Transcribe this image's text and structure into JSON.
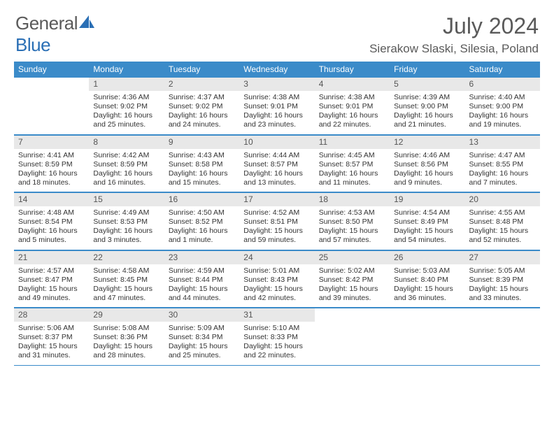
{
  "brand": {
    "word1": "General",
    "word2": "Blue"
  },
  "title": "July 2024",
  "location": "Sierakow Slaski, Silesia, Poland",
  "colors": {
    "header_bg": "#3b8bc9",
    "header_text": "#ffffff",
    "daynum_bg": "#e8e8e8",
    "border": "#3b8bc9",
    "text": "#333333",
    "title_text": "#5a5a5a"
  },
  "day_names": [
    "Sunday",
    "Monday",
    "Tuesday",
    "Wednesday",
    "Thursday",
    "Friday",
    "Saturday"
  ],
  "weeks": [
    [
      {
        "empty": true
      },
      {
        "n": "1",
        "sr": "4:36 AM",
        "ss": "9:02 PM",
        "dl": "16 hours and 25 minutes."
      },
      {
        "n": "2",
        "sr": "4:37 AM",
        "ss": "9:02 PM",
        "dl": "16 hours and 24 minutes."
      },
      {
        "n": "3",
        "sr": "4:38 AM",
        "ss": "9:01 PM",
        "dl": "16 hours and 23 minutes."
      },
      {
        "n": "4",
        "sr": "4:38 AM",
        "ss": "9:01 PM",
        "dl": "16 hours and 22 minutes."
      },
      {
        "n": "5",
        "sr": "4:39 AM",
        "ss": "9:00 PM",
        "dl": "16 hours and 21 minutes."
      },
      {
        "n": "6",
        "sr": "4:40 AM",
        "ss": "9:00 PM",
        "dl": "16 hours and 19 minutes."
      }
    ],
    [
      {
        "n": "7",
        "sr": "4:41 AM",
        "ss": "8:59 PM",
        "dl": "16 hours and 18 minutes."
      },
      {
        "n": "8",
        "sr": "4:42 AM",
        "ss": "8:59 PM",
        "dl": "16 hours and 16 minutes."
      },
      {
        "n": "9",
        "sr": "4:43 AM",
        "ss": "8:58 PM",
        "dl": "16 hours and 15 minutes."
      },
      {
        "n": "10",
        "sr": "4:44 AM",
        "ss": "8:57 PM",
        "dl": "16 hours and 13 minutes."
      },
      {
        "n": "11",
        "sr": "4:45 AM",
        "ss": "8:57 PM",
        "dl": "16 hours and 11 minutes."
      },
      {
        "n": "12",
        "sr": "4:46 AM",
        "ss": "8:56 PM",
        "dl": "16 hours and 9 minutes."
      },
      {
        "n": "13",
        "sr": "4:47 AM",
        "ss": "8:55 PM",
        "dl": "16 hours and 7 minutes."
      }
    ],
    [
      {
        "n": "14",
        "sr": "4:48 AM",
        "ss": "8:54 PM",
        "dl": "16 hours and 5 minutes."
      },
      {
        "n": "15",
        "sr": "4:49 AM",
        "ss": "8:53 PM",
        "dl": "16 hours and 3 minutes."
      },
      {
        "n": "16",
        "sr": "4:50 AM",
        "ss": "8:52 PM",
        "dl": "16 hours and 1 minute."
      },
      {
        "n": "17",
        "sr": "4:52 AM",
        "ss": "8:51 PM",
        "dl": "15 hours and 59 minutes."
      },
      {
        "n": "18",
        "sr": "4:53 AM",
        "ss": "8:50 PM",
        "dl": "15 hours and 57 minutes."
      },
      {
        "n": "19",
        "sr": "4:54 AM",
        "ss": "8:49 PM",
        "dl": "15 hours and 54 minutes."
      },
      {
        "n": "20",
        "sr": "4:55 AM",
        "ss": "8:48 PM",
        "dl": "15 hours and 52 minutes."
      }
    ],
    [
      {
        "n": "21",
        "sr": "4:57 AM",
        "ss": "8:47 PM",
        "dl": "15 hours and 49 minutes."
      },
      {
        "n": "22",
        "sr": "4:58 AM",
        "ss": "8:45 PM",
        "dl": "15 hours and 47 minutes."
      },
      {
        "n": "23",
        "sr": "4:59 AM",
        "ss": "8:44 PM",
        "dl": "15 hours and 44 minutes."
      },
      {
        "n": "24",
        "sr": "5:01 AM",
        "ss": "8:43 PM",
        "dl": "15 hours and 42 minutes."
      },
      {
        "n": "25",
        "sr": "5:02 AM",
        "ss": "8:42 PM",
        "dl": "15 hours and 39 minutes."
      },
      {
        "n": "26",
        "sr": "5:03 AM",
        "ss": "8:40 PM",
        "dl": "15 hours and 36 minutes."
      },
      {
        "n": "27",
        "sr": "5:05 AM",
        "ss": "8:39 PM",
        "dl": "15 hours and 33 minutes."
      }
    ],
    [
      {
        "n": "28",
        "sr": "5:06 AM",
        "ss": "8:37 PM",
        "dl": "15 hours and 31 minutes."
      },
      {
        "n": "29",
        "sr": "5:08 AM",
        "ss": "8:36 PM",
        "dl": "15 hours and 28 minutes."
      },
      {
        "n": "30",
        "sr": "5:09 AM",
        "ss": "8:34 PM",
        "dl": "15 hours and 25 minutes."
      },
      {
        "n": "31",
        "sr": "5:10 AM",
        "ss": "8:33 PM",
        "dl": "15 hours and 22 minutes."
      },
      {
        "empty": true
      },
      {
        "empty": true
      },
      {
        "empty": true
      }
    ]
  ],
  "labels": {
    "sunrise": "Sunrise: ",
    "sunset": "Sunset: ",
    "daylight": "Daylight: "
  }
}
